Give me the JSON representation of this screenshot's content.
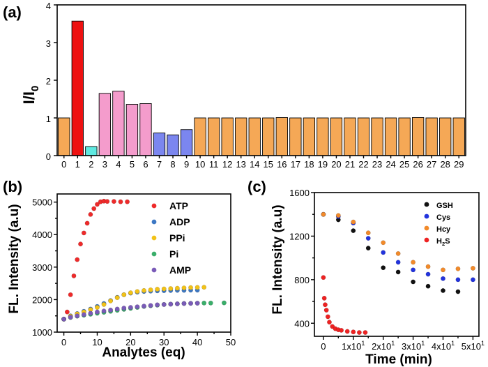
{
  "chart_data": [
    {
      "panel": "(a)",
      "type": "bar",
      "ylabel": "I/I",
      "ylabel_sub": "0",
      "ylim": [
        0,
        4
      ],
      "yticks": [
        0,
        1,
        2,
        3,
        4
      ],
      "categories": [
        "0",
        "1",
        "2",
        "3",
        "4",
        "5",
        "6",
        "7",
        "8",
        "9",
        "10",
        "11",
        "12",
        "13",
        "14",
        "15",
        "16",
        "17",
        "18",
        "19",
        "20",
        "21",
        "22",
        "23",
        "24",
        "25",
        "26",
        "27",
        "28",
        "29"
      ],
      "values": [
        1.0,
        3.57,
        0.24,
        1.65,
        1.71,
        1.36,
        1.38,
        0.6,
        0.55,
        0.69,
        1.0,
        1.0,
        1.0,
        1.0,
        1.0,
        1.0,
        1.01,
        1.0,
        1.0,
        1.0,
        1.0,
        1.0,
        1.0,
        1.0,
        1.0,
        1.0,
        1.01,
        1.0,
        1.0,
        1.0
      ],
      "colors": [
        "#f5a856",
        "#ee1111",
        "#5ee8e0",
        "#f49ccc",
        "#f49ccc",
        "#f49ccc",
        "#f49ccc",
        "#7b86ef",
        "#7b86ef",
        "#7b86ef",
        "#f5a856",
        "#f5a856",
        "#f5a856",
        "#f5a856",
        "#f5a856",
        "#f5a856",
        "#f5a856",
        "#f5a856",
        "#f5a856",
        "#f5a856",
        "#f5a856",
        "#f5a856",
        "#f5a856",
        "#f5a856",
        "#f5a856",
        "#f5a856",
        "#f5a856",
        "#f5a856",
        "#f5a856",
        "#f5a856"
      ]
    },
    {
      "panel": "(b)",
      "type": "scatter",
      "xlabel": "Analytes (eq)",
      "ylabel": "FL. Intensity (a.u)",
      "xlim": [
        -2,
        50
      ],
      "ylim": [
        1000,
        5250
      ],
      "xticks": [
        0,
        10,
        20,
        30,
        40,
        50
      ],
      "yticks": [
        1000,
        2000,
        3000,
        4000,
        5000
      ],
      "series": [
        {
          "name": "ATP",
          "color": "#ee2a2a",
          "x": [
            0,
            1,
            2,
            3,
            4,
            5,
            6,
            7,
            8,
            9,
            10,
            11,
            12,
            13,
            15,
            17,
            19
          ],
          "y": [
            1400,
            1620,
            2150,
            2730,
            3230,
            3710,
            4050,
            4350,
            4620,
            4800,
            4930,
            5010,
            5030,
            5020,
            5020,
            5010,
            5010
          ]
        },
        {
          "name": "ADP",
          "color": "#3d78c4",
          "x": [
            0,
            2,
            4,
            6,
            8,
            10,
            12,
            14,
            16,
            18,
            20,
            22,
            24,
            26,
            28,
            30,
            32,
            34,
            36,
            38,
            40
          ],
          "y": [
            1400,
            1500,
            1570,
            1640,
            1710,
            1790,
            1880,
            1970,
            2070,
            2150,
            2200,
            2230,
            2250,
            2260,
            2270,
            2275,
            2280,
            2285,
            2285,
            2290,
            2290
          ]
        },
        {
          "name": "PPi",
          "color": "#f2c218",
          "x": [
            0,
            2,
            4,
            6,
            8,
            10,
            12,
            14,
            16,
            18,
            20,
            22,
            24,
            26,
            28,
            30,
            32,
            34,
            36,
            38,
            40,
            42
          ],
          "y": [
            1400,
            1490,
            1560,
            1620,
            1690,
            1760,
            1850,
            1960,
            2060,
            2150,
            2210,
            2250,
            2280,
            2300,
            2320,
            2330,
            2340,
            2350,
            2360,
            2370,
            2375,
            2380
          ]
        },
        {
          "name": "Pi",
          "color": "#3aae6a",
          "x": [
            0,
            2,
            4,
            6,
            8,
            10,
            12,
            14,
            16,
            18,
            20,
            22,
            24,
            26,
            28,
            30,
            32,
            34,
            36,
            38,
            40,
            42,
            44,
            48
          ],
          "y": [
            1400,
            1450,
            1490,
            1520,
            1550,
            1580,
            1610,
            1640,
            1670,
            1700,
            1730,
            1760,
            1790,
            1810,
            1830,
            1850,
            1860,
            1870,
            1880,
            1885,
            1890,
            1895,
            1895,
            1900
          ]
        },
        {
          "name": "AMP",
          "color": "#7a5bb8",
          "x": [
            0,
            2,
            4,
            6,
            8,
            10,
            12,
            14,
            16,
            18,
            20,
            22,
            24,
            26,
            28,
            30,
            32,
            34,
            36,
            38,
            40
          ],
          "y": [
            1400,
            1460,
            1500,
            1540,
            1580,
            1620,
            1650,
            1680,
            1710,
            1740,
            1760,
            1780,
            1800,
            1820,
            1840,
            1850,
            1860,
            1870,
            1880,
            1885,
            1890
          ]
        }
      ]
    },
    {
      "panel": "(c)",
      "type": "scatter",
      "xlabel": "Time (min)",
      "ylabel": "FL. Intensity (a.u)",
      "xlim": [
        -3,
        52
      ],
      "ylim": [
        280,
        1600
      ],
      "xticks": [
        0,
        10,
        20,
        30,
        40,
        50
      ],
      "xtick_labels": [
        "0",
        "1x10",
        "2x10",
        "3x10",
        "4x10",
        "5x10"
      ],
      "xtick_sup": [
        "",
        "1",
        "1",
        "1",
        "1",
        "1"
      ],
      "yticks": [
        400,
        800,
        1200,
        1600
      ],
      "series": [
        {
          "name": "GSH",
          "color": "#111111",
          "x": [
            0,
            5,
            10,
            15,
            20,
            25,
            30,
            35,
            40,
            45
          ],
          "y": [
            1400,
            1350,
            1250,
            1090,
            910,
            870,
            780,
            740,
            700,
            690
          ]
        },
        {
          "name": "Cys",
          "color": "#2233dd",
          "x": [
            0,
            5,
            10,
            15,
            20,
            25,
            30,
            35,
            40,
            45,
            50
          ],
          "y": [
            1400,
            1380,
            1320,
            1180,
            1050,
            960,
            890,
            850,
            810,
            800,
            800
          ]
        },
        {
          "name": "Hcy",
          "color": "#f28a2a",
          "x": [
            0,
            5,
            10,
            15,
            20,
            25,
            30,
            35,
            40,
            45,
            50
          ],
          "y": [
            1400,
            1390,
            1330,
            1230,
            1140,
            1040,
            960,
            920,
            890,
            900,
            905
          ]
        },
        {
          "name": "H2S",
          "color": "#ee2222",
          "x": [
            0,
            0.3,
            0.6,
            1,
            1.5,
            2,
            3,
            4,
            5,
            6,
            8,
            10,
            12,
            14
          ],
          "y": [
            820,
            630,
            570,
            520,
            460,
            410,
            370,
            350,
            340,
            335,
            325,
            320,
            315,
            315
          ]
        }
      ]
    }
  ]
}
